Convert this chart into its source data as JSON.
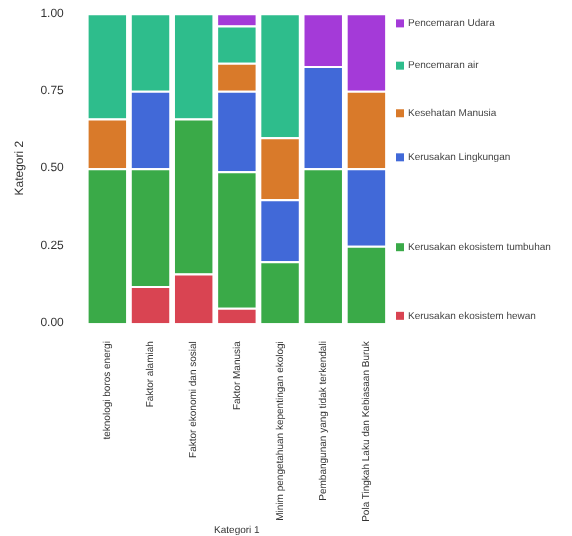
{
  "chart_data": {
    "type": "bar",
    "stacked": true,
    "xlabel": "Kategori 1",
    "ylabel": "Kategori 2",
    "categories": [
      "teknologi boros energi",
      "Faktor alamiah",
      "Faktor ekonomi dan sosial",
      "Faktor Manusia",
      "Minim pengetahuan kepentingan ekologi",
      "Pembangunan yang tidak terkendali",
      "Pola Tingkah Laku dan Kebiasaan Buruk"
    ],
    "ylim": [
      0,
      1
    ],
    "yticks": [
      {
        "value": 0,
        "label": "0.00"
      },
      {
        "value": 0.25,
        "label": "0.25"
      },
      {
        "value": 0.5,
        "label": "0.50"
      },
      {
        "value": 0.75,
        "label": "0.75"
      },
      {
        "value": 1,
        "label": "1.00"
      }
    ],
    "grid": false,
    "legend": "right",
    "series": [
      {
        "name": "Kerusakan ekosistem hewan",
        "color": "#d94452",
        "values": [
          0,
          0.12,
          0.16,
          0.05,
          0,
          0,
          0
        ]
      },
      {
        "name": "Kerusakan ekosistem tumbuhan",
        "color": "#3aaa48",
        "values": [
          0.5,
          0.38,
          0.5,
          0.44,
          0.2,
          0.5,
          0.25
        ]
      },
      {
        "name": "Kerusakan Lingkungan",
        "color": "#4169d8",
        "values": [
          0,
          0.25,
          0,
          0.26,
          0.2,
          0.33,
          0.25
        ]
      },
      {
        "name": "Kesehatan Manusia",
        "color": "#d97a2a",
        "values": [
          0.16,
          0,
          0,
          0.09,
          0.2,
          0,
          0.25
        ]
      },
      {
        "name": "Pencemaran air",
        "color": "#2ebd8c",
        "values": [
          0.34,
          0.25,
          0.34,
          0.12,
          0.4,
          0,
          0
        ]
      },
      {
        "name": "Pencemaran Udara",
        "color": "#a43ad8",
        "values": [
          0,
          0,
          0,
          0.04,
          0,
          0.17,
          0.25
        ]
      }
    ]
  }
}
